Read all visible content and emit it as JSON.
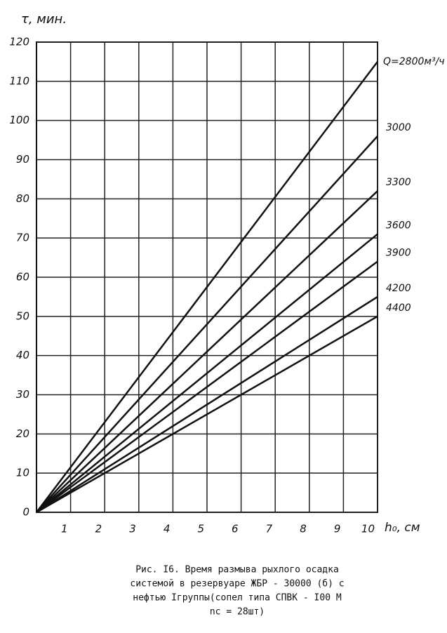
{
  "chart_data": {
    "type": "line",
    "y_label": "τ, мин.",
    "x_label": "h₀, см",
    "x": [
      0,
      10
    ],
    "series": [
      {
        "name": "Q=2800м³/ч",
        "color": "#111111",
        "values": [
          0,
          115
        ]
      },
      {
        "name": "3000",
        "color": "#111111",
        "values": [
          0,
          96
        ]
      },
      {
        "name": "3300",
        "color": "#111111",
        "values": [
          0,
          82
        ]
      },
      {
        "name": "3600",
        "color": "#111111",
        "values": [
          0,
          71
        ]
      },
      {
        "name": "3900",
        "color": "#111111",
        "values": [
          0,
          64
        ]
      },
      {
        "name": "4200",
        "color": "#111111",
        "values": [
          0,
          55
        ]
      },
      {
        "name": "4400",
        "color": "#111111",
        "values": [
          0,
          50
        ]
      }
    ],
    "xlim": [
      0,
      10
    ],
    "ylim": [
      0,
      120
    ],
    "xticks": [
      1,
      2,
      3,
      4,
      5,
      6,
      7,
      8,
      9,
      10
    ],
    "yticks": [
      0,
      10,
      20,
      30,
      40,
      50,
      60,
      70,
      80,
      90,
      100,
      110,
      120
    ],
    "grid": true,
    "caption": [
      "Рис. I6.    Время размыва рыхлого осадка",
      "системой в  резервуаре ЖБР - 30000 (б) с",
      "нефтью Iгруппы(сопел типа СПВК - I00  М",
      "nс = 28шт)"
    ]
  }
}
